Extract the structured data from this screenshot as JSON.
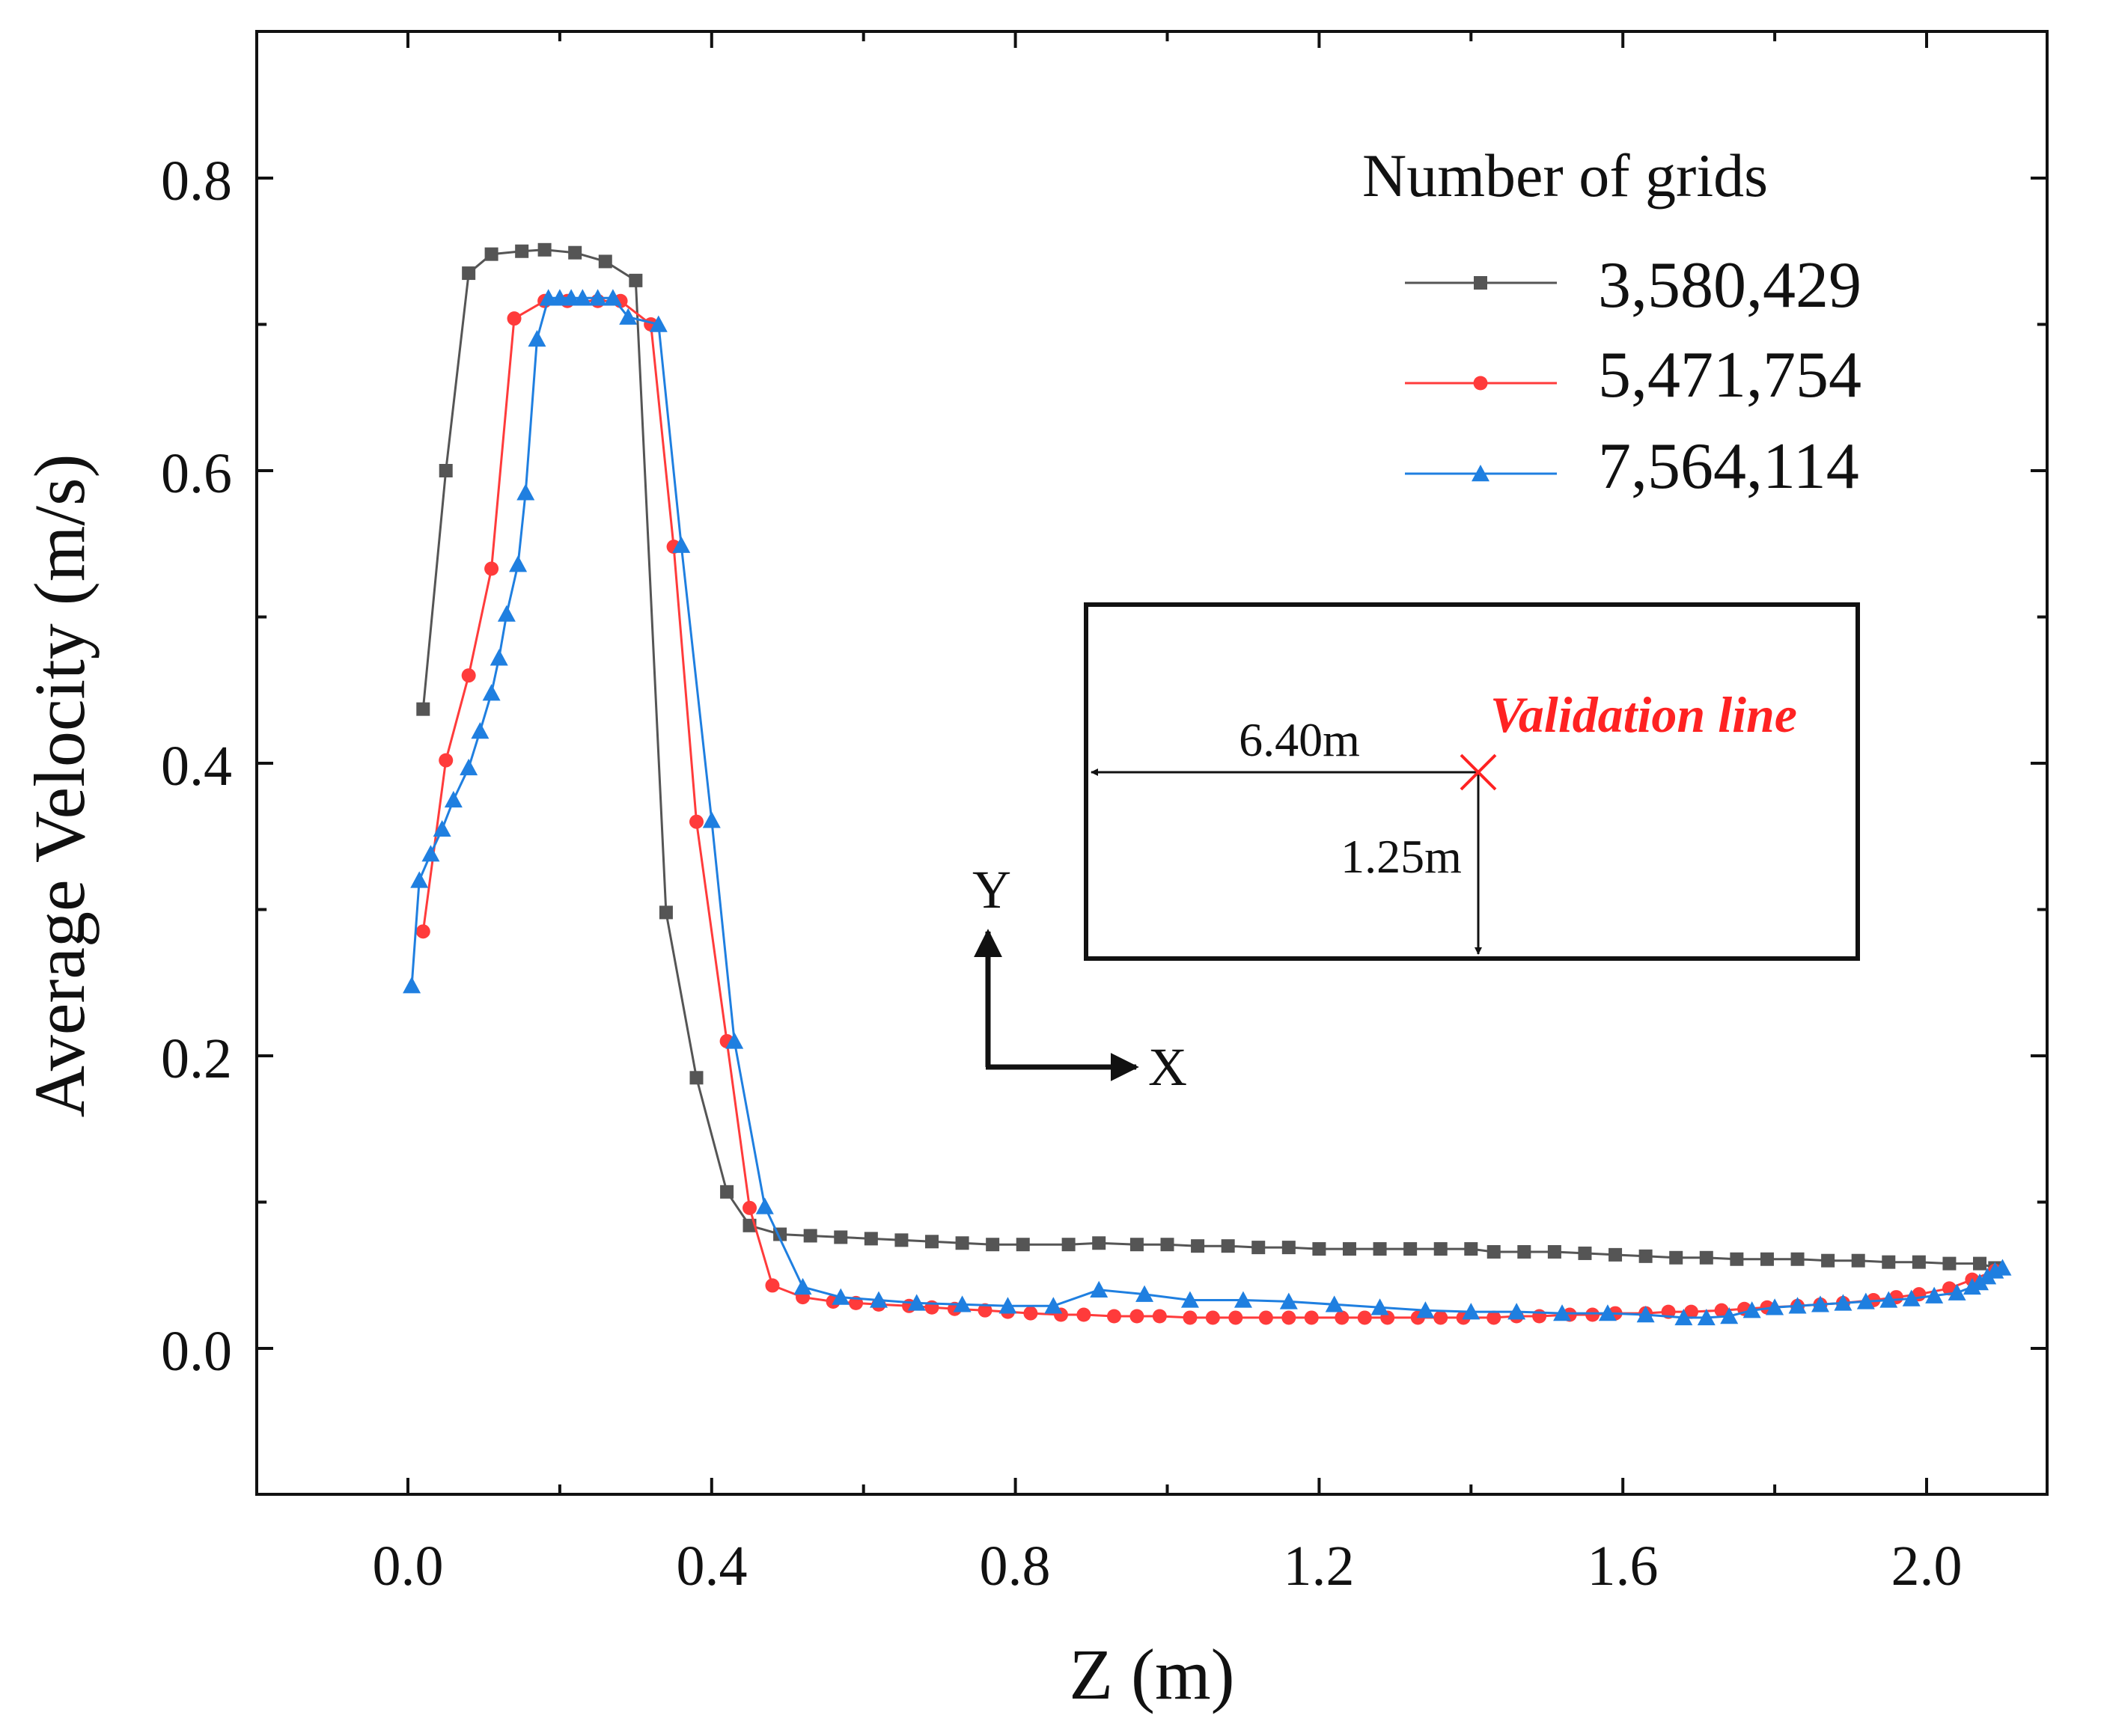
{
  "chart_data": {
    "type": "line",
    "xlabel": "Z (m)",
    "ylabel": "Average Velocity (m/s)",
    "xlim": [
      -0.2,
      2.2
    ],
    "ylim": [
      -0.1,
      0.9
    ],
    "xticks": [
      "0.0",
      "0.4",
      "0.8",
      "1.2",
      "1.6",
      "2.0"
    ],
    "yticks": [
      "0.0",
      "0.2",
      "0.4",
      "0.6",
      "0.8"
    ],
    "legend": {
      "title": "Number of grids",
      "position": "top-right"
    },
    "series": [
      {
        "name": "3,580,429",
        "color": "#555555",
        "marker": "square",
        "points": [
          [
            0.02,
            0.437
          ],
          [
            0.05,
            0.6
          ],
          [
            0.08,
            0.735
          ],
          [
            0.11,
            0.748
          ],
          [
            0.15,
            0.75
          ],
          [
            0.18,
            0.751
          ],
          [
            0.22,
            0.749
          ],
          [
            0.26,
            0.743
          ],
          [
            0.3,
            0.73
          ],
          [
            0.34,
            0.298
          ],
          [
            0.38,
            0.185
          ],
          [
            0.42,
            0.107
          ],
          [
            0.45,
            0.084
          ],
          [
            0.49,
            0.078
          ],
          [
            0.53,
            0.077
          ],
          [
            0.57,
            0.076
          ],
          [
            0.61,
            0.075
          ],
          [
            0.65,
            0.074
          ],
          [
            0.69,
            0.073
          ],
          [
            0.73,
            0.072
          ],
          [
            0.77,
            0.071
          ],
          [
            0.81,
            0.071
          ],
          [
            0.87,
            0.071
          ],
          [
            0.91,
            0.072
          ],
          [
            0.96,
            0.071
          ],
          [
            1.0,
            0.071
          ],
          [
            1.04,
            0.07
          ],
          [
            1.08,
            0.07
          ],
          [
            1.12,
            0.069
          ],
          [
            1.16,
            0.069
          ],
          [
            1.2,
            0.068
          ],
          [
            1.24,
            0.068
          ],
          [
            1.28,
            0.068
          ],
          [
            1.32,
            0.068
          ],
          [
            1.36,
            0.068
          ],
          [
            1.4,
            0.068
          ],
          [
            1.43,
            0.066
          ],
          [
            1.47,
            0.066
          ],
          [
            1.51,
            0.066
          ],
          [
            1.55,
            0.065
          ],
          [
            1.59,
            0.064
          ],
          [
            1.63,
            0.063
          ],
          [
            1.67,
            0.062
          ],
          [
            1.71,
            0.062
          ],
          [
            1.75,
            0.061
          ],
          [
            1.79,
            0.061
          ],
          [
            1.83,
            0.061
          ],
          [
            1.87,
            0.06
          ],
          [
            1.91,
            0.06
          ],
          [
            1.95,
            0.059
          ],
          [
            1.99,
            0.059
          ],
          [
            2.03,
            0.058
          ],
          [
            2.07,
            0.058
          ],
          [
            2.09,
            0.055
          ]
        ]
      },
      {
        "name": "5,471,754",
        "color": "#ff3b3b",
        "marker": "circle",
        "points": [
          [
            0.02,
            0.285
          ],
          [
            0.05,
            0.402
          ],
          [
            0.08,
            0.46
          ],
          [
            0.11,
            0.533
          ],
          [
            0.14,
            0.704
          ],
          [
            0.18,
            0.716
          ],
          [
            0.21,
            0.716
          ],
          [
            0.25,
            0.716
          ],
          [
            0.28,
            0.716
          ],
          [
            0.32,
            0.7
          ],
          [
            0.35,
            0.548
          ],
          [
            0.38,
            0.36
          ],
          [
            0.42,
            0.21
          ],
          [
            0.45,
            0.096
          ],
          [
            0.48,
            0.043
          ],
          [
            0.52,
            0.035
          ],
          [
            0.56,
            0.032
          ],
          [
            0.59,
            0.031
          ],
          [
            0.62,
            0.03
          ],
          [
            0.66,
            0.029
          ],
          [
            0.69,
            0.028
          ],
          [
            0.72,
            0.027
          ],
          [
            0.76,
            0.026
          ],
          [
            0.79,
            0.025
          ],
          [
            0.82,
            0.024
          ],
          [
            0.86,
            0.023
          ],
          [
            0.89,
            0.023
          ],
          [
            0.93,
            0.022
          ],
          [
            0.96,
            0.022
          ],
          [
            0.99,
            0.022
          ],
          [
            1.03,
            0.021
          ],
          [
            1.06,
            0.021
          ],
          [
            1.09,
            0.021
          ],
          [
            1.13,
            0.021
          ],
          [
            1.16,
            0.021
          ],
          [
            1.19,
            0.021
          ],
          [
            1.23,
            0.021
          ],
          [
            1.26,
            0.021
          ],
          [
            1.29,
            0.021
          ],
          [
            1.33,
            0.021
          ],
          [
            1.36,
            0.021
          ],
          [
            1.39,
            0.021
          ],
          [
            1.43,
            0.021
          ],
          [
            1.46,
            0.022
          ],
          [
            1.49,
            0.022
          ],
          [
            1.53,
            0.023
          ],
          [
            1.56,
            0.023
          ],
          [
            1.59,
            0.024
          ],
          [
            1.63,
            0.024
          ],
          [
            1.66,
            0.025
          ],
          [
            1.69,
            0.025
          ],
          [
            1.73,
            0.026
          ],
          [
            1.76,
            0.027
          ],
          [
            1.79,
            0.028
          ],
          [
            1.83,
            0.029
          ],
          [
            1.86,
            0.03
          ],
          [
            1.89,
            0.031
          ],
          [
            1.93,
            0.033
          ],
          [
            1.96,
            0.035
          ],
          [
            1.99,
            0.037
          ],
          [
            2.03,
            0.041
          ],
          [
            2.06,
            0.047
          ],
          [
            2.09,
            0.053
          ]
        ]
      },
      {
        "name": "7,564,114",
        "color": "#1f7fe0",
        "marker": "triangle",
        "points": [
          [
            0.005,
            0.248
          ],
          [
            0.015,
            0.32
          ],
          [
            0.03,
            0.338
          ],
          [
            0.045,
            0.355
          ],
          [
            0.06,
            0.375
          ],
          [
            0.08,
            0.397
          ],
          [
            0.095,
            0.422
          ],
          [
            0.11,
            0.448
          ],
          [
            0.12,
            0.472
          ],
          [
            0.13,
            0.502
          ],
          [
            0.145,
            0.536
          ],
          [
            0.155,
            0.585
          ],
          [
            0.17,
            0.69
          ],
          [
            0.185,
            0.718
          ],
          [
            0.2,
            0.718
          ],
          [
            0.215,
            0.718
          ],
          [
            0.23,
            0.718
          ],
          [
            0.25,
            0.718
          ],
          [
            0.27,
            0.718
          ],
          [
            0.29,
            0.705
          ],
          [
            0.33,
            0.7
          ],
          [
            0.36,
            0.549
          ],
          [
            0.4,
            0.361
          ],
          [
            0.43,
            0.21
          ],
          [
            0.47,
            0.097
          ],
          [
            0.52,
            0.042
          ],
          [
            0.57,
            0.035
          ],
          [
            0.62,
            0.033
          ],
          [
            0.67,
            0.031
          ],
          [
            0.73,
            0.03
          ],
          [
            0.79,
            0.029
          ],
          [
            0.85,
            0.029
          ],
          [
            0.91,
            0.04
          ],
          [
            0.97,
            0.037
          ],
          [
            1.03,
            0.033
          ],
          [
            1.1,
            0.033
          ],
          [
            1.16,
            0.032
          ],
          [
            1.22,
            0.03
          ],
          [
            1.28,
            0.028
          ],
          [
            1.34,
            0.026
          ],
          [
            1.4,
            0.025
          ],
          [
            1.46,
            0.025
          ],
          [
            1.52,
            0.024
          ],
          [
            1.58,
            0.024
          ],
          [
            1.63,
            0.023
          ],
          [
            1.68,
            0.021
          ],
          [
            1.71,
            0.021
          ],
          [
            1.74,
            0.022
          ],
          [
            1.77,
            0.026
          ],
          [
            1.8,
            0.028
          ],
          [
            1.83,
            0.029
          ],
          [
            1.86,
            0.03
          ],
          [
            1.89,
            0.031
          ],
          [
            1.92,
            0.032
          ],
          [
            1.95,
            0.033
          ],
          [
            1.98,
            0.034
          ],
          [
            2.01,
            0.036
          ],
          [
            2.04,
            0.038
          ],
          [
            2.06,
            0.042
          ],
          [
            2.07,
            0.045
          ],
          [
            2.08,
            0.049
          ],
          [
            2.09,
            0.053
          ],
          [
            2.1,
            0.055
          ]
        ]
      }
    ],
    "inset": {
      "distance_label": "6.40m",
      "height_label": "1.25m",
      "validation_label": "Validation line",
      "validation_color": "#ff2222",
      "axis_y_label": "Y",
      "axis_x_label": "X"
    }
  }
}
